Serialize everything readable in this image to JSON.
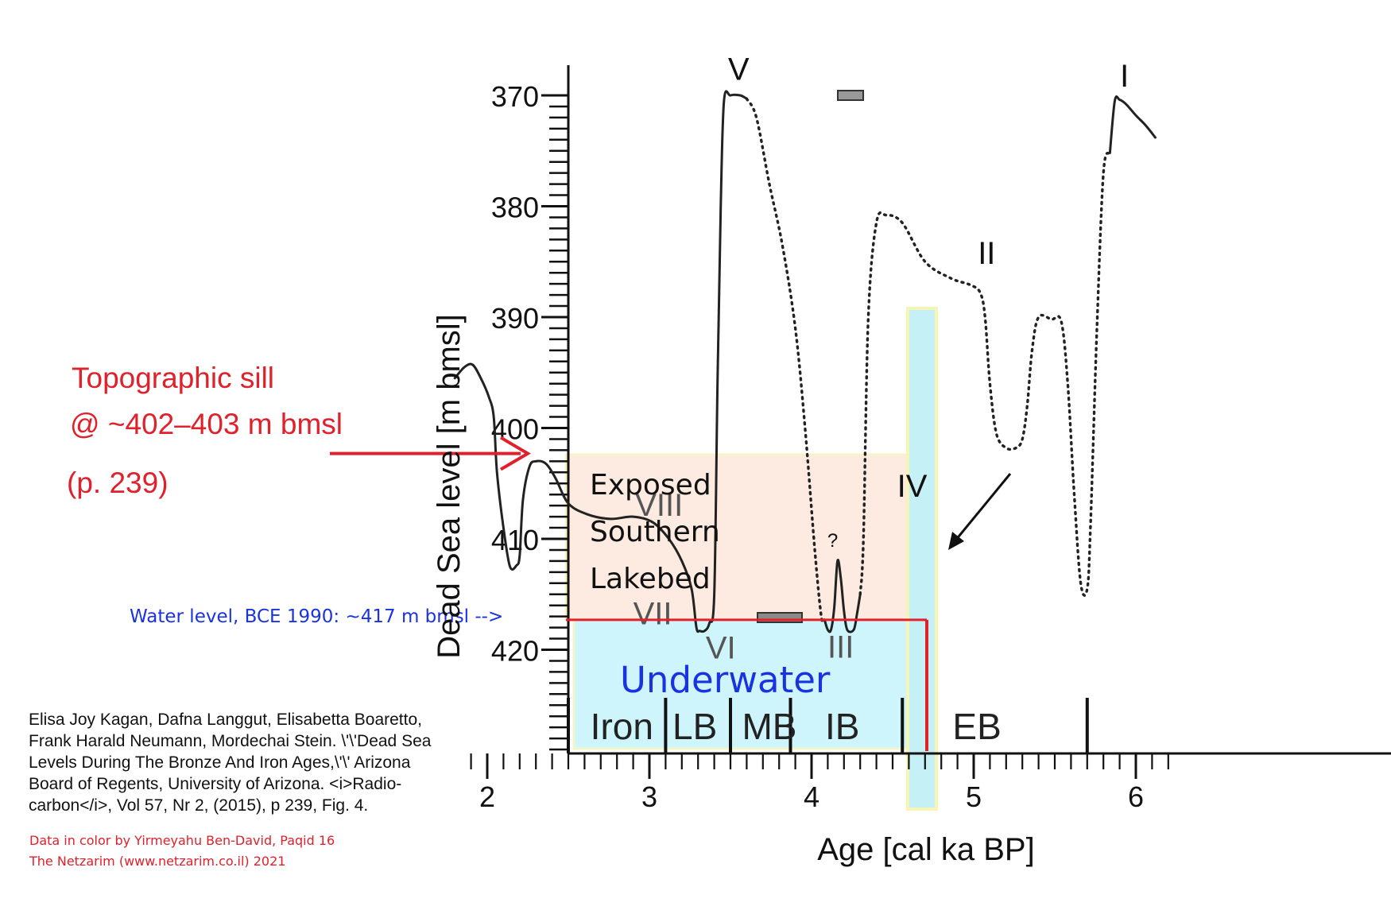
{
  "chart_data": {
    "type": "line",
    "xlabel": "Age [cal ka BP]",
    "ylabel": "Dead Sea level [m bmsl]",
    "xlim": [
      1.8,
      6.8
    ],
    "ylim": [
      370,
      429
    ],
    "y_inverted": true,
    "x_ticks": [
      2,
      3,
      4,
      5,
      6
    ],
    "x_tick_labels": [
      "2",
      "3",
      "4",
      "5",
      "6"
    ],
    "y_ticks": [
      370,
      380,
      390,
      400,
      410,
      420
    ],
    "y_tick_labels": [
      "370",
      "380",
      "390",
      "400",
      "410",
      "420"
    ],
    "series": [
      {
        "line": "solid",
        "x": [
          1.8,
          1.86,
          1.91,
          1.96,
          2.01,
          2.04,
          2.06,
          2.1,
          2.14,
          2.18,
          2.2,
          2.22,
          2.26,
          2.3,
          2.36,
          2.42,
          2.5,
          2.62,
          2.76,
          2.9,
          3.02,
          3.12,
          3.2,
          3.26,
          3.29,
          3.31,
          3.34,
          3.37,
          3.4,
          3.42,
          3.44,
          3.46,
          3.5,
          3.56,
          3.6
        ],
        "y": [
          395.5,
          394.5,
          394.3,
          395.5,
          397.2,
          399,
          404,
          409,
          412.5,
          412.4,
          411.5,
          406.5,
          403.5,
          403,
          403.2,
          404.5,
          406.8,
          407.8,
          408.2,
          408,
          408.5,
          410,
          412,
          414.5,
          418,
          418.3,
          418.3,
          417.6,
          415,
          396,
          380,
          370.5,
          370,
          370,
          370.3
        ]
      },
      {
        "line": "dotted",
        "x": [
          3.6,
          3.66,
          3.74,
          3.82,
          3.9,
          3.96,
          4.02,
          4.06,
          4.08
        ],
        "y": [
          370.3,
          372,
          378,
          383.5,
          391,
          400,
          411,
          417,
          417.3
        ]
      },
      {
        "line": "solid",
        "x": [
          4.08,
          4.1,
          4.12,
          4.14,
          4.16,
          4.18,
          4.2,
          4.22,
          4.26,
          4.28,
          4.3
        ],
        "y": [
          417.3,
          418.2,
          418.2,
          416.2,
          412,
          413.5,
          416.5,
          418.2,
          418.2,
          416.8,
          415
        ]
      },
      {
        "line": "dotted",
        "x": [
          4.3,
          4.32,
          4.35,
          4.4,
          4.46,
          4.56,
          4.7,
          4.86,
          4.98,
          5.04,
          5.07,
          5.1,
          5.14,
          5.2,
          5.26,
          5.3,
          5.33,
          5.36,
          5.4,
          5.48,
          5.54,
          5.58,
          5.62,
          5.66,
          5.7,
          5.72,
          5.76,
          5.8,
          5.84
        ],
        "y": [
          415,
          410,
          390,
          381.5,
          380.8,
          381.5,
          385,
          386.5,
          387.1,
          387.8,
          390,
          396,
          400.5,
          401.8,
          401.8,
          401,
          398,
          393,
          390,
          390.2,
          390.4,
          396,
          406,
          414,
          414.5,
          409,
          391,
          377,
          375.2
        ]
      },
      {
        "line": "solid",
        "x": [
          5.84,
          5.87,
          5.9,
          5.94,
          6.0,
          6.06,
          6.12
        ],
        "y": [
          375.2,
          370.5,
          370.4,
          370.8,
          371.8,
          372.7,
          373.8
        ]
      }
    ],
    "roman_labels": [
      {
        "text": "V",
        "x": 3.55,
        "y": 367.6
      },
      {
        "text": "I",
        "x": 5.93,
        "y": 368.2
      },
      {
        "text": "II",
        "x": 5.08,
        "y": 384.2
      },
      {
        "text": "VIII",
        "x": 3.06,
        "y": 406.9
      },
      {
        "text": "VII",
        "x": 3.02,
        "y": 416.7
      },
      {
        "text": "VI",
        "x": 3.44,
        "y": 419.8
      },
      {
        "text": "III",
        "x": 4.18,
        "y": 419.7
      },
      {
        "text": "IV",
        "x": 4.62,
        "y": 405.2
      },
      {
        "text": "?",
        "x": 4.13,
        "y": 409.7
      }
    ],
    "period_labels": [
      {
        "text": "Iron",
        "x": 2.83
      },
      {
        "text": "LB",
        "x": 3.28
      },
      {
        "text": "MB",
        "x": 3.74
      },
      {
        "text": "IB",
        "x": 4.19
      },
      {
        "text": "EB",
        "x": 5.02
      }
    ],
    "period_dividers": [
      2.5,
      3.1,
      3.5,
      3.87,
      4.56,
      5.7
    ],
    "water_level_value": 417.3,
    "sill_value": 402.3,
    "annotations": {
      "sill_title": "Topographic sill",
      "sill_value_text": "@ ~402–403 m bmsl",
      "sill_page": "(p. 239)",
      "water_level_text": "Water level, BCE 1990: ~417 m bmsl -->",
      "exposed_label": [
        "Exposed",
        "Southern",
        "Lakebed"
      ],
      "underwater_label": "Underwater"
    },
    "citation": [
      "Elisa Joy Kagan, Dafna Langgut, Elisabetta Boaretto,",
      "Frank Harald Neumann, Mordechai Stein. \\'\\'Dead Sea",
      "Levels During The Bronze And Iron Ages,\\'\\' Arizona",
      "Board of Regents, University of Arizona. <i>Radio-",
      "carbon</i>, Vol 57, Nr 2, (2015), p 239, Fig. 4."
    ],
    "credit": [
      "Data in color by Yirmeyahu Ben-David, Paqid 16",
      "The Netzarim (www.netzarim.co.il) 2021"
    ],
    "colors": {
      "exposed_fill": "#fdeae0",
      "underwater_fill": "#cdf5fb",
      "highlight_4ka": "#c5f0f5",
      "highlight_border": "#f5f5b8",
      "red": "#e0202a",
      "blue": "#1a33e0",
      "curve": "#222222",
      "roman_gray": "#555555",
      "marker_gray": "#999999"
    }
  }
}
